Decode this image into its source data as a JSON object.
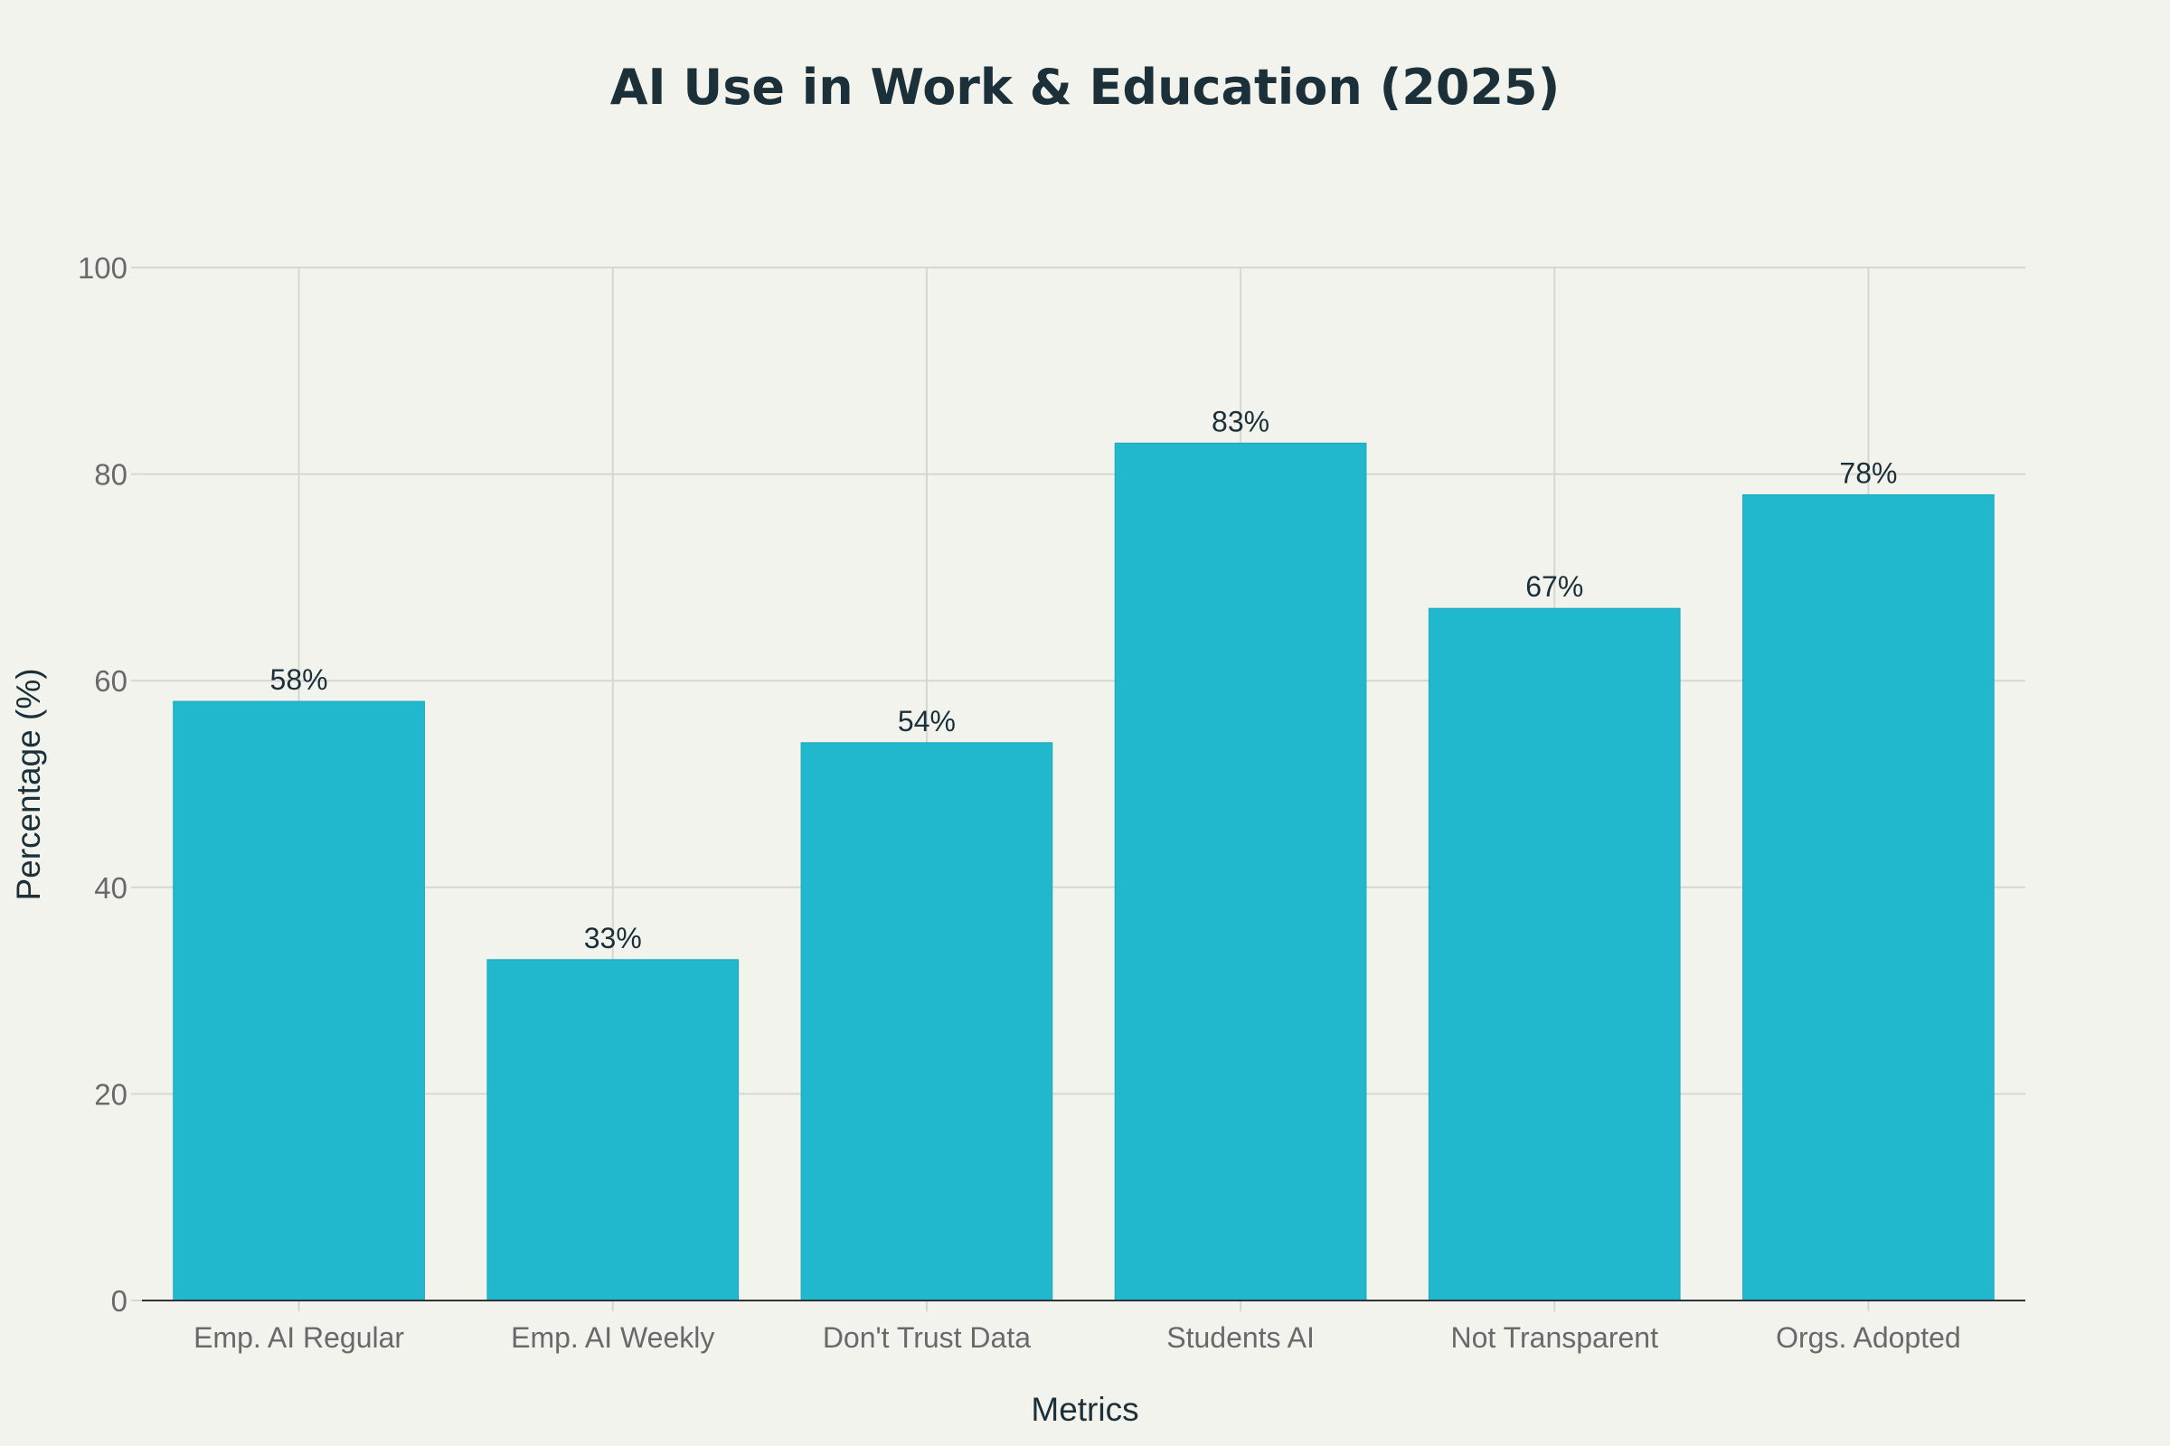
{
  "chart_data": {
    "type": "bar",
    "title": "AI Use in Work & Education (2025)",
    "xlabel": "Metrics",
    "ylabel": "Percentage (%)",
    "categories": [
      "Emp. AI Regular",
      "Emp. AI Weekly",
      "Don't Trust Data",
      "Students AI",
      "Not Transparent",
      "Orgs. Adopted"
    ],
    "values": [
      58,
      33,
      54,
      83,
      67,
      78
    ],
    "data_labels": [
      "58%",
      "33%",
      "54%",
      "83%",
      "67%",
      "78%"
    ],
    "ylim": [
      0,
      100
    ],
    "yticks": [
      0,
      20,
      40,
      60,
      80,
      100
    ],
    "grid": true,
    "legend": "none",
    "colors": {
      "bar": "#21b7cc",
      "title": "#1b3038",
      "axis_text": "#68696b",
      "label_text": "#1b3038",
      "grid": "#d6d7d3",
      "axis_line": "#2f3236",
      "background": "#f3f3ee"
    }
  }
}
